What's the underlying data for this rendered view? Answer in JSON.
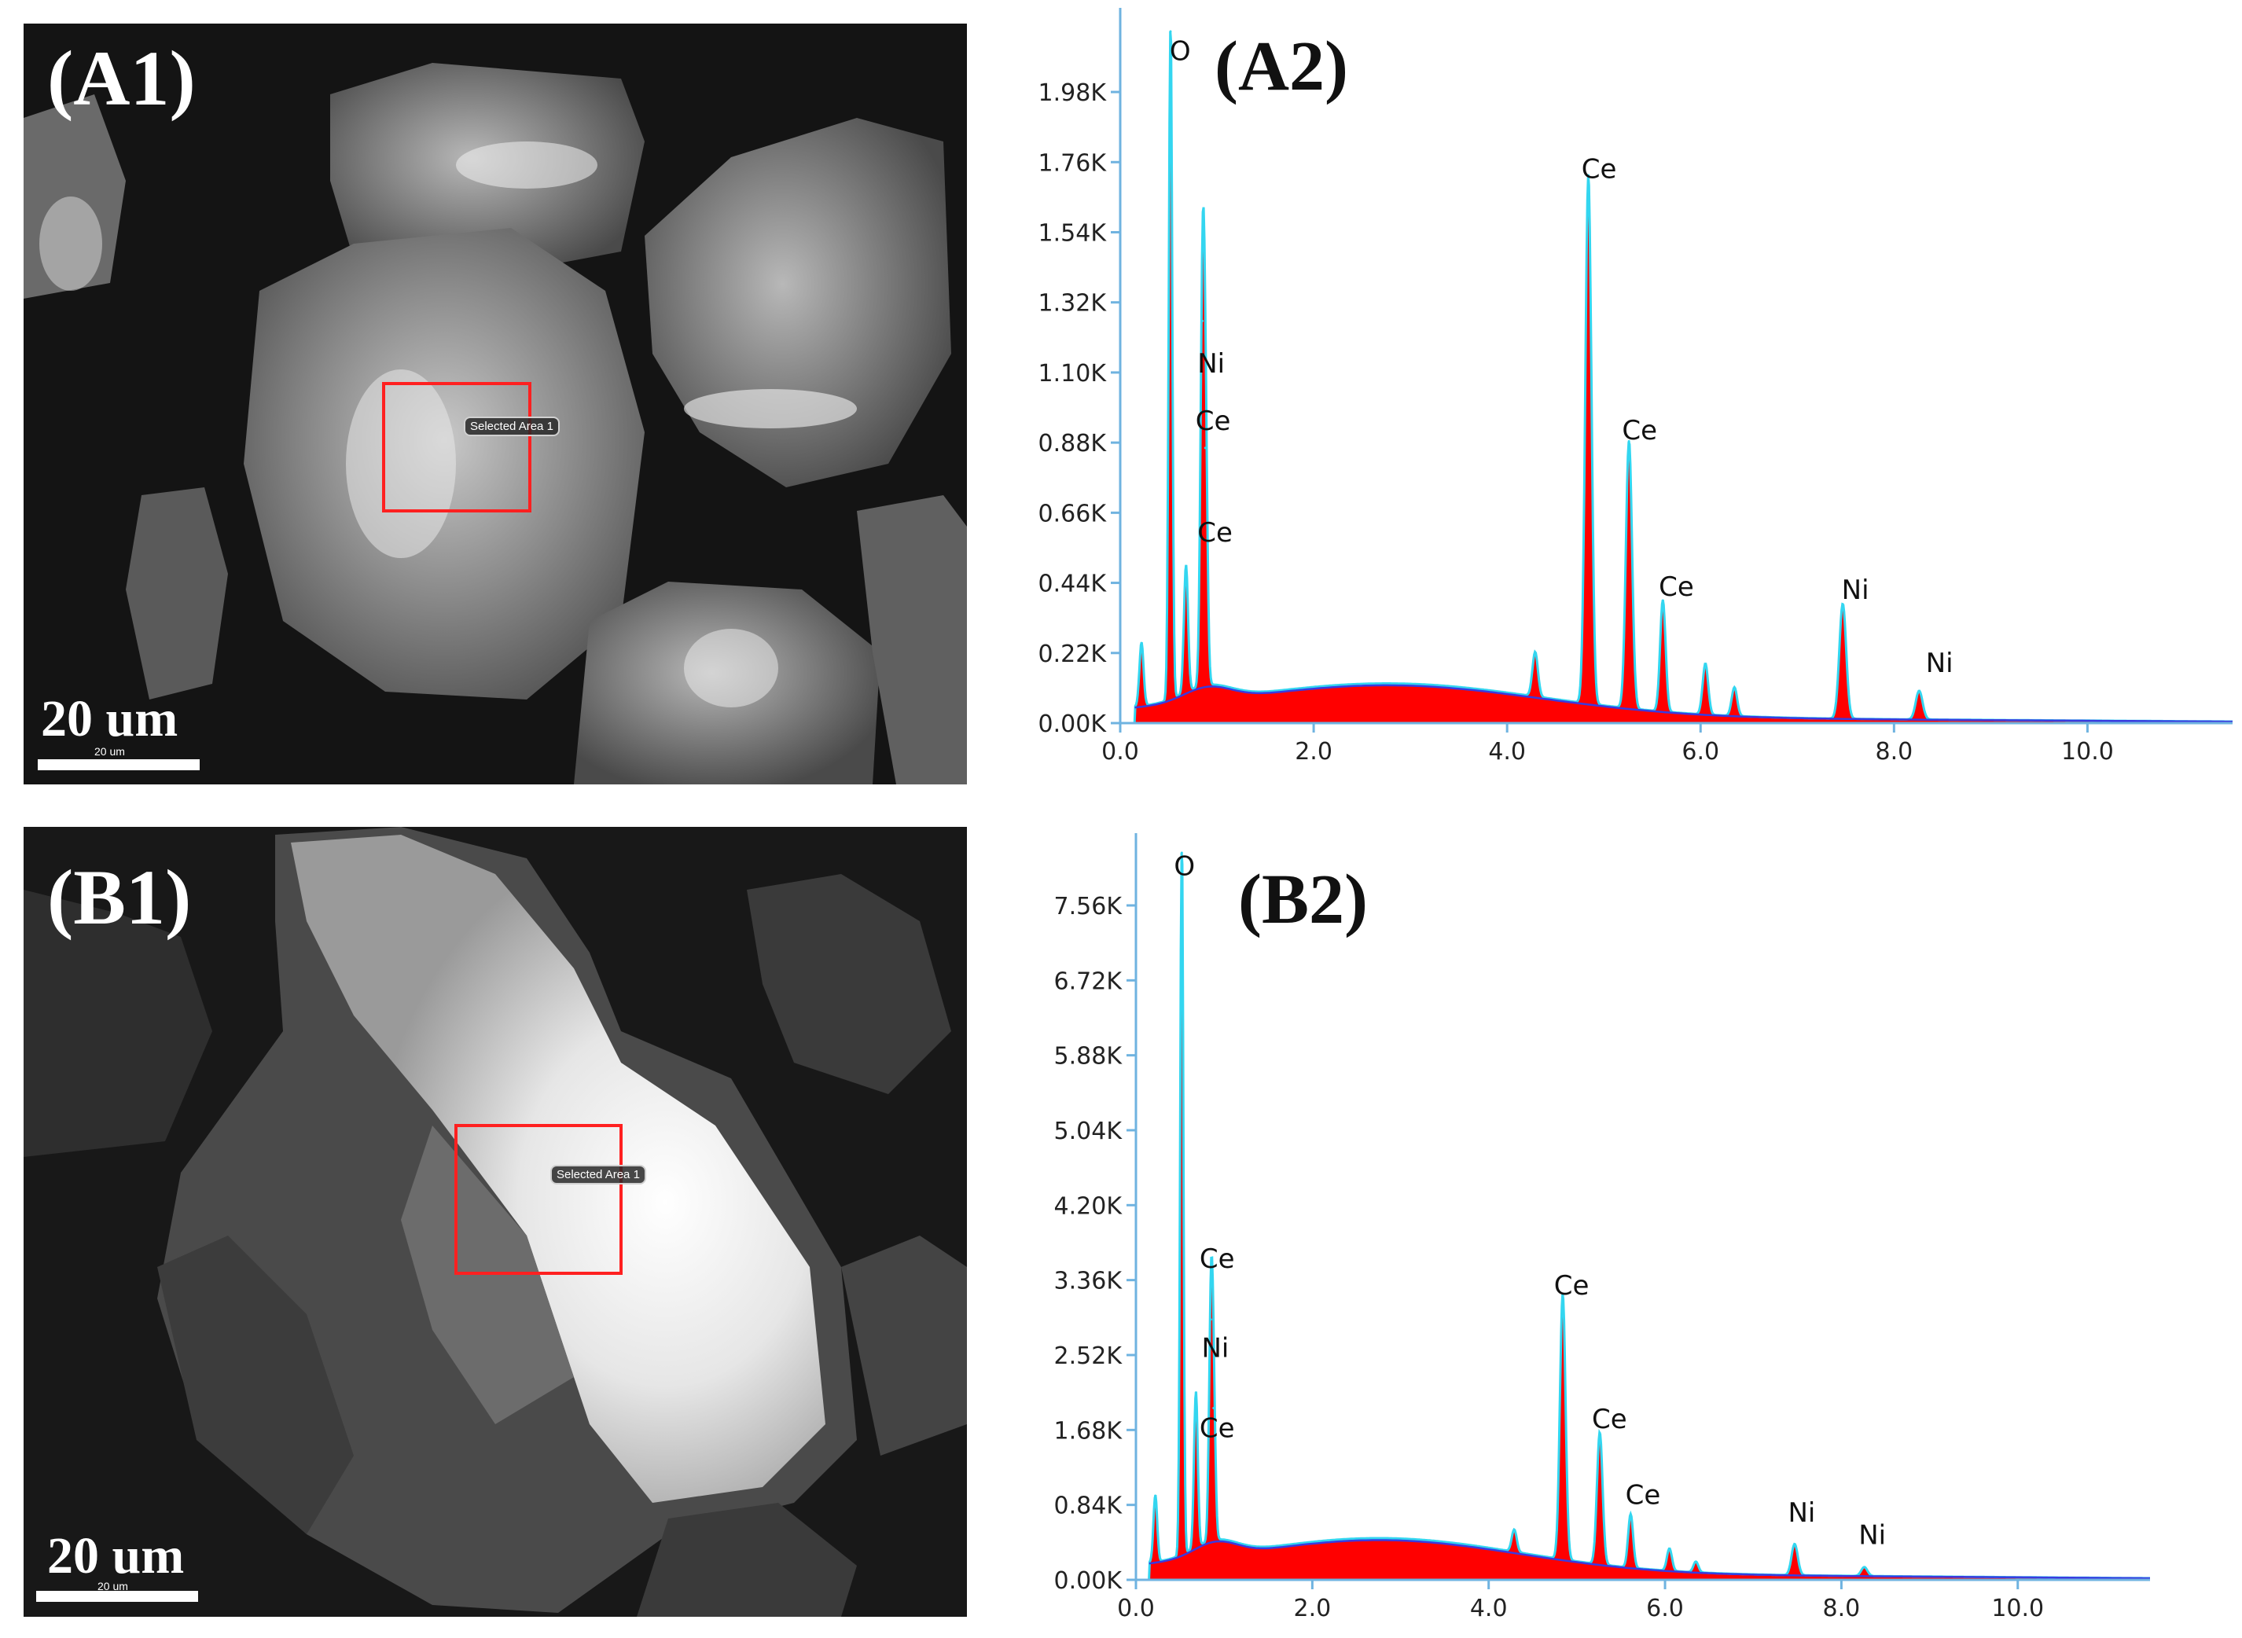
{
  "panels": {
    "a1": {
      "label": "(A1)",
      "scale_label": "20 um",
      "scale_small": "20 um",
      "selection_label": "Selected Area 1"
    },
    "b1": {
      "label": "(B1)",
      "scale_label": "20 um",
      "scale_small": "20 um",
      "selection_label": "Selected Area 1"
    }
  },
  "colors": {
    "spectrum_fill": "#ff0000",
    "spectrum_line": "#33d6f0",
    "background_line": "#3a3adf",
    "axis": "#6fb3e0"
  },
  "chart_data": [
    {
      "type": "area",
      "title": "(A2)",
      "xlim": [
        0,
        11.5
      ],
      "ylim": [
        0,
        2.17
      ],
      "x_ticks": [
        "0.0",
        "2.0",
        "4.0",
        "6.0",
        "8.0",
        "10.0"
      ],
      "x_tick_values": [
        0,
        2,
        4,
        6,
        8,
        10
      ],
      "y_ticks": [
        "0.00K",
        "0.22K",
        "0.44K",
        "0.66K",
        "0.88K",
        "1.10K",
        "1.32K",
        "1.54K",
        "1.76K",
        "1.98K"
      ],
      "y_tick_values": [
        0,
        0.22,
        0.44,
        0.66,
        0.88,
        1.1,
        1.32,
        1.54,
        1.76,
        1.98
      ],
      "peaks": [
        {
          "x": 0.22,
          "y": 0.2,
          "w": 0.03
        },
        {
          "x": 0.52,
          "y": 2.17,
          "w": 0.025
        },
        {
          "x": 0.68,
          "y": 0.4,
          "w": 0.03
        },
        {
          "x": 0.85,
          "y": 1.15,
          "w": 0.03
        },
        {
          "x": 0.88,
          "y": 0.75,
          "w": 0.03
        },
        {
          "x": 4.29,
          "y": 0.14,
          "w": 0.04
        },
        {
          "x": 4.84,
          "y": 1.66,
          "w": 0.045
        },
        {
          "x": 5.26,
          "y": 0.84,
          "w": 0.045
        },
        {
          "x": 5.61,
          "y": 0.35,
          "w": 0.04
        },
        {
          "x": 6.05,
          "y": 0.16,
          "w": 0.04
        },
        {
          "x": 6.35,
          "y": 0.09,
          "w": 0.04
        },
        {
          "x": 7.47,
          "y": 0.36,
          "w": 0.05
        },
        {
          "x": 8.26,
          "y": 0.09,
          "w": 0.05
        }
      ],
      "annotations": [
        {
          "text": "O",
          "x": 0.62,
          "y": 2.08
        },
        {
          "text": "Ni",
          "x": 0.94,
          "y": 1.1
        },
        {
          "text": "Ce",
          "x": 0.96,
          "y": 0.92
        },
        {
          "text": "Ce",
          "x": 0.98,
          "y": 0.57
        },
        {
          "text": "Ce",
          "x": 4.95,
          "y": 1.71
        },
        {
          "text": "Ce",
          "x": 5.37,
          "y": 0.89
        },
        {
          "text": "Ce",
          "x": 5.75,
          "y": 0.4
        },
        {
          "text": "Ni",
          "x": 7.6,
          "y": 0.39
        },
        {
          "text": "Ni",
          "x": 8.47,
          "y": 0.16
        }
      ]
    },
    {
      "type": "area",
      "title": "(B2)",
      "xlim": [
        0,
        11.5
      ],
      "ylim": [
        0,
        8.15
      ],
      "x_ticks": [
        "0.0",
        "2.0",
        "4.0",
        "6.0",
        "8.0",
        "10.0"
      ],
      "x_tick_values": [
        0,
        2,
        4,
        6,
        8,
        10
      ],
      "y_ticks": [
        "0.00K",
        "0.84K",
        "1.68K",
        "2.52K",
        "3.36K",
        "4.20K",
        "5.04K",
        "5.88K",
        "6.72K",
        "7.56K"
      ],
      "y_tick_values": [
        0,
        0.84,
        1.68,
        2.52,
        3.36,
        4.2,
        5.04,
        5.88,
        6.72,
        7.56
      ],
      "peaks": [
        {
          "x": 0.22,
          "y": 0.75,
          "w": 0.03
        },
        {
          "x": 0.52,
          "y": 8.15,
          "w": 0.025
        },
        {
          "x": 0.68,
          "y": 1.75,
          "w": 0.03
        },
        {
          "x": 0.85,
          "y": 2.5,
          "w": 0.03
        },
        {
          "x": 0.88,
          "y": 1.5,
          "w": 0.03
        },
        {
          "x": 4.29,
          "y": 0.25,
          "w": 0.04
        },
        {
          "x": 4.84,
          "y": 2.98,
          "w": 0.045
        },
        {
          "x": 5.26,
          "y": 1.48,
          "w": 0.045
        },
        {
          "x": 5.61,
          "y": 0.6,
          "w": 0.04
        },
        {
          "x": 6.05,
          "y": 0.25,
          "w": 0.04
        },
        {
          "x": 6.35,
          "y": 0.12,
          "w": 0.04
        },
        {
          "x": 7.47,
          "y": 0.35,
          "w": 0.05
        },
        {
          "x": 8.26,
          "y": 0.1,
          "w": 0.05
        }
      ],
      "annotations": [
        {
          "text": "O",
          "x": 0.55,
          "y": 7.9
        },
        {
          "text": "Ce",
          "x": 0.92,
          "y": 3.5
        },
        {
          "text": "Ni",
          "x": 0.9,
          "y": 2.5
        },
        {
          "text": "Ce",
          "x": 0.92,
          "y": 1.6
        },
        {
          "text": "Ce",
          "x": 4.94,
          "y": 3.2
        },
        {
          "text": "Ce",
          "x": 5.37,
          "y": 1.7
        },
        {
          "text": "Ce",
          "x": 5.75,
          "y": 0.85
        },
        {
          "text": "Ni",
          "x": 7.55,
          "y": 0.65
        },
        {
          "text": "Ni",
          "x": 8.35,
          "y": 0.4
        }
      ]
    }
  ]
}
